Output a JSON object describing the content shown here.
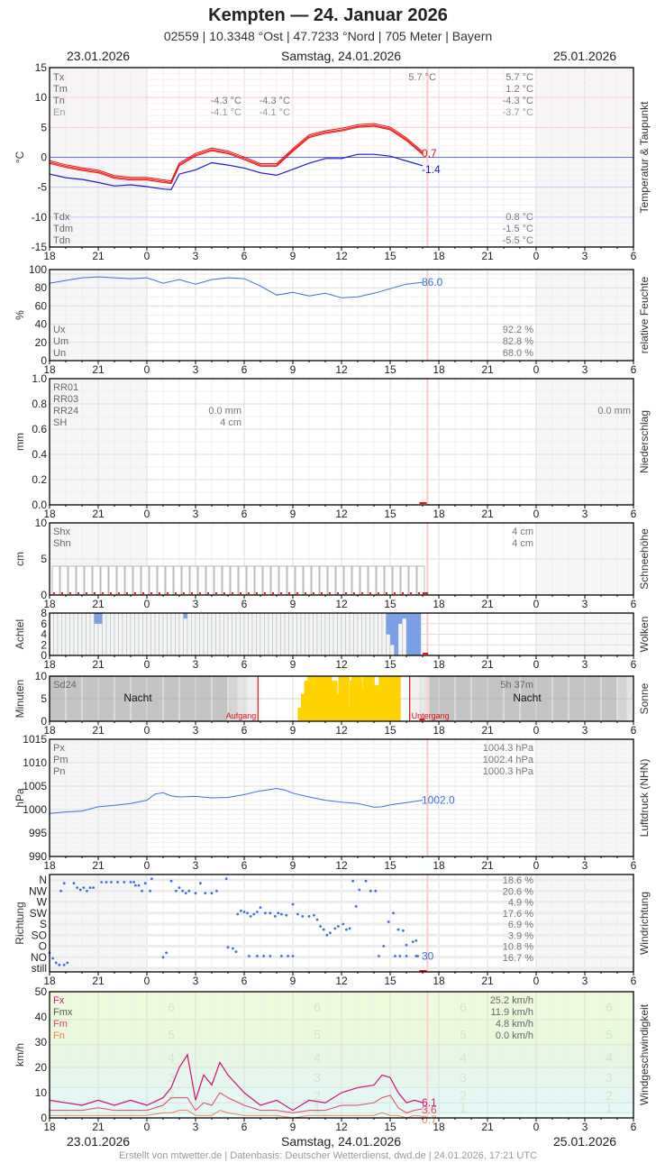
{
  "header": {
    "title": "Kempten  —  24. Januar 2026",
    "subtitle": "02559  |  10.3348 °Ost  |  47.7233 °Nord  |  705 Meter  |  Bayern",
    "date_left": "23.01.2026",
    "date_center": "Samstag, 24.01.2026",
    "date_right": "25.01.2026"
  },
  "footer": "Erstellt von mtwetter.de | Datenbasis: Deutscher Wetterdienst, dwd.de | 24.01.2026, 17:21 UTC",
  "x_ticks": [
    "18",
    "21",
    "0",
    "3",
    "6",
    "9",
    "12",
    "15",
    "18",
    "21",
    "0",
    "3",
    "6"
  ],
  "colors": {
    "temp": "#ee1111",
    "dewpoint": "#1a1ad6",
    "humidity": "#3b6fe0",
    "pressure": "#3b6fe0",
    "sun": "#ffd200",
    "clouds": "#7a9fe6",
    "gust": "#cc1177",
    "wind_mean": "#e04466",
    "wind_min": "#f08050",
    "night": "#c4c4c4",
    "now_line": "#ffcccc"
  },
  "chart_data": [
    {
      "type": "line",
      "title": "Temperatur & Taupunkt",
      "ylabel": "°C",
      "ylim": [
        -15,
        15
      ],
      "yticks": [
        "15",
        "10",
        "5",
        "0",
        "-5",
        "-10",
        "-15"
      ],
      "x_hours_from_18": [
        0,
        1,
        2,
        3,
        4,
        5,
        6,
        7,
        7.5,
        8,
        9,
        10,
        11,
        12,
        13,
        14,
        15,
        16,
        17,
        18,
        19,
        20,
        21,
        22,
        23
      ],
      "series": [
        {
          "name": "Temperatur",
          "values": [
            -0.8,
            -1.5,
            -2.0,
            -2.4,
            -3.3,
            -3.6,
            -3.6,
            -4.0,
            -4.2,
            -1.2,
            0.4,
            1.3,
            0.8,
            -0.2,
            -1.3,
            -1.3,
            1.2,
            3.5,
            4.2,
            4.6,
            5.2,
            5.4,
            4.8,
            3.0,
            0.7
          ]
        },
        {
          "name": "Taupunkt",
          "values": [
            -2.8,
            -3.4,
            -3.7,
            -4.2,
            -4.8,
            -4.6,
            -4.9,
            -5.3,
            -5.4,
            -2.8,
            -2.1,
            -0.9,
            -1.3,
            -1.8,
            -2.6,
            -3.0,
            -2.0,
            -1.0,
            -0.2,
            -0.2,
            0.5,
            0.5,
            0.2,
            -0.6,
            -1.4
          ]
        }
      ],
      "last_values": {
        "temp": "0.7",
        "dew": "-1.4"
      },
      "stats": {
        "labels": [
          "Tx",
          "Tm",
          "Tn",
          "En"
        ],
        "day1": [
          "",
          "",
          "-4.3 °C",
          "-4.1 °C"
        ],
        "day1b": [
          "",
          "",
          "-4.3 °C",
          "-4.1 °C"
        ],
        "day2_top": "5.7 °C",
        "day2": [
          "5.7 °C",
          "1.2 °C",
          "-4.3 °C",
          "-3.7 °C"
        ],
        "dew_labels": [
          "Tdx",
          "Tdm",
          "Tdn"
        ],
        "dew_values": [
          "0.8 °C",
          "-1.5 °C",
          "-5.5 °C"
        ]
      }
    },
    {
      "type": "line",
      "title": "relative Feuchte",
      "ylabel": "%",
      "ylim": [
        0,
        100
      ],
      "yticks": [
        "100",
        "80",
        "60",
        "40",
        "20",
        "0"
      ],
      "x_hours_from_18": [
        0,
        1,
        2,
        3,
        4,
        5,
        6,
        7,
        8,
        9,
        10,
        11,
        12,
        13,
        14,
        15,
        16,
        17,
        18,
        19,
        20,
        21,
        22,
        23
      ],
      "series": [
        {
          "name": "Feuchte",
          "values": [
            85,
            88,
            91,
            92,
            91,
            90,
            91,
            85,
            89,
            84,
            89,
            91,
            90,
            82,
            72,
            75,
            71,
            74,
            69,
            70,
            74,
            79,
            84,
            86
          ]
        }
      ],
      "last_value": "86.0",
      "stats": {
        "labels": [
          "Ux",
          "Um",
          "Un"
        ],
        "values": [
          "92.2 %",
          "82.8 %",
          "68.0 %"
        ]
      }
    },
    {
      "type": "bar",
      "title": "Niederschlag",
      "ylabel": "mm",
      "ylim": [
        0,
        1.0
      ],
      "yticks": [
        "1.0",
        "0.8",
        "0.6",
        "0.4",
        "0.2",
        "0.0"
      ],
      "stats": {
        "labels": [
          "RR01",
          "RR03",
          "RR24",
          "SH"
        ],
        "day1": [
          "",
          "",
          "0.0 mm",
          "4 cm"
        ],
        "day2": [
          "",
          "",
          "0.0 mm",
          ""
        ]
      }
    },
    {
      "type": "bar",
      "title": "Schneehöhe",
      "ylabel": "cm",
      "ylim": [
        0,
        10
      ],
      "yticks": [
        "10",
        "5",
        "0"
      ],
      "values_note": "constant 4 cm from 18h to 17h next day",
      "stats": {
        "labels": [
          "Shx",
          "Shn"
        ],
        "values": [
          "4 cm",
          "4 cm"
        ]
      }
    },
    {
      "type": "bar",
      "title": "Wolken",
      "ylabel": "Achtel",
      "ylim": [
        0,
        8
      ],
      "yticks": [
        "8",
        "6",
        "4",
        "2",
        "0"
      ]
    },
    {
      "type": "bar",
      "title": "Sonne",
      "ylabel": "Minuten",
      "ylim": [
        0,
        10
      ],
      "yticks": [
        "10",
        "5",
        "0"
      ],
      "labels": {
        "sd24": "Sd24",
        "duration": "5h 37m",
        "night": "Nacht",
        "sunrise": "Aufgang",
        "sunset": "Untergang"
      }
    },
    {
      "type": "line",
      "title": "Luftdruck (NHN)",
      "ylabel": "hPa",
      "ylim": [
        990,
        1015
      ],
      "yticks": [
        "1015",
        "1010",
        "1005",
        "1000",
        "995",
        "990"
      ],
      "x_hours_from_18": [
        0,
        1,
        2,
        3,
        4,
        5,
        6,
        6.5,
        7,
        7.5,
        8,
        9,
        10,
        11,
        12,
        13,
        14,
        14.5,
        15,
        16,
        17,
        18,
        19,
        20,
        20.5,
        21,
        22,
        23
      ],
      "series": [
        {
          "name": "Luftdruck",
          "values": [
            999.2,
            999.5,
            999.7,
            1000.6,
            1000.9,
            1001.3,
            1002.0,
            1003.3,
            1003.6,
            1002.9,
            1002.7,
            1002.8,
            1002.5,
            1002.6,
            1003.2,
            1004.0,
            1004.5,
            1004.2,
            1003.5,
            1002.7,
            1002.0,
            1001.6,
            1001.3,
            1000.5,
            1000.6,
            1001.0,
            1001.5,
            1002.0
          ]
        }
      ],
      "last_value": "1002.0",
      "stats": {
        "labels": [
          "Px",
          "Pm",
          "Pn"
        ],
        "values": [
          "1004.3 hPa",
          "1002.4 hPa",
          "1000.3 hPa"
        ]
      }
    },
    {
      "type": "scatter",
      "title": "Windrichtung",
      "ylabel": "Richtung",
      "yticks": [
        "N",
        "NW",
        "W",
        "SW",
        "S",
        "SO",
        "O",
        "NO",
        "still"
      ],
      "last_value": "30",
      "stats": {
        "values": [
          "18.6 %",
          "20.6 %",
          "4.9 %",
          "17.6 %",
          "6.9 %",
          "3.9 %",
          "10.8 %",
          "16.7 %"
        ]
      }
    },
    {
      "type": "line",
      "title": "Windgeschwindigkeit",
      "ylabel": "km/h",
      "ylim": [
        0,
        50
      ],
      "yticks": [
        "50",
        "40",
        "30",
        "20",
        "10",
        "0"
      ],
      "bft_labels": [
        "6",
        "5",
        "4",
        "3",
        "2",
        "1"
      ],
      "x_hours_from_18": [
        0,
        1,
        2,
        3,
        4,
        5,
        6,
        7,
        7.5,
        8,
        8.5,
        9,
        9.5,
        10,
        10.5,
        11,
        12,
        13,
        14,
        15,
        16,
        17,
        18,
        19,
        20,
        20.5,
        21,
        21.5,
        22,
        22.5,
        23
      ],
      "series": [
        {
          "name": "Fx",
          "values": [
            7,
            6,
            5,
            7,
            5,
            7,
            5,
            8,
            12,
            20,
            25,
            7,
            17,
            13,
            22,
            17,
            10,
            5,
            7,
            3,
            7,
            6,
            10,
            12,
            13,
            17,
            16,
            10,
            6,
            7,
            6.1
          ]
        },
        {
          "name": "Fm",
          "values": [
            3,
            3,
            3,
            4,
            3,
            3,
            3,
            5,
            8,
            8,
            8,
            3,
            6,
            5,
            10,
            8,
            5,
            3,
            3,
            2,
            3,
            3,
            5,
            5,
            6,
            8,
            9,
            4,
            2,
            3,
            3.6
          ]
        },
        {
          "name": "Fn",
          "values": [
            1,
            1,
            1,
            1,
            1,
            1,
            1,
            2,
            2,
            3,
            3,
            1,
            1,
            1,
            3,
            2,
            1,
            1,
            1,
            0,
            1,
            1,
            1,
            1,
            1,
            2,
            1,
            1,
            0,
            1,
            0.7
          ]
        }
      ],
      "last_values": {
        "fx": "6.1",
        "fm": "3.6",
        "fn": "0.7"
      },
      "stats": {
        "labels": [
          "Fx",
          "Fmx",
          "Fm",
          "Fn"
        ],
        "values": [
          "25.2 km/h",
          "11.9 km/h",
          "4.8 km/h",
          "0.0 km/h"
        ]
      }
    }
  ]
}
